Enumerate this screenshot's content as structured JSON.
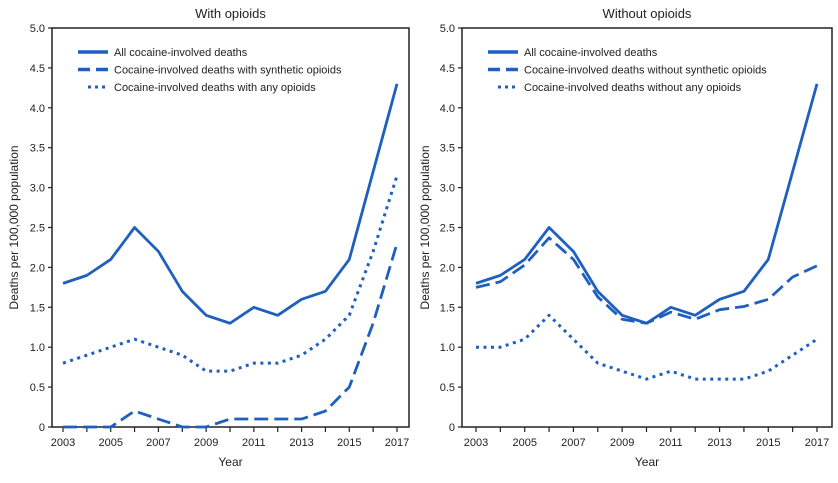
{
  "line_color": "#1f5fbf",
  "chart_data": [
    {
      "type": "line",
      "title": "With opioids",
      "xlabel": "Year",
      "ylabel": "Deaths per 100,000 population",
      "ylim": [
        0,
        5.0
      ],
      "yticks": [
        "0",
        "0.5",
        "1.0",
        "1.5",
        "2.0",
        "2.5",
        "3.0",
        "3.5",
        "4.0",
        "4.5",
        "5.0"
      ],
      "xticks": [
        "2003",
        "2005",
        "2007",
        "2009",
        "2011",
        "2013",
        "2015",
        "2017"
      ],
      "x": [
        2003,
        2004,
        2005,
        2006,
        2007,
        2008,
        2009,
        2010,
        2011,
        2012,
        2013,
        2014,
        2015,
        2016,
        2017
      ],
      "grid": false,
      "legend": "top-left",
      "series": [
        {
          "name": "All cocaine-involved deaths",
          "style": "solid",
          "values": [
            1.8,
            1.9,
            2.1,
            2.5,
            2.2,
            1.7,
            1.4,
            1.3,
            1.5,
            1.4,
            1.6,
            1.7,
            2.1,
            3.2,
            4.3
          ]
        },
        {
          "name": "Cocaine-involved deaths with synthetic opioids",
          "style": "dashed",
          "values": [
            0,
            0,
            0,
            0.2,
            0.1,
            0,
            0,
            0.1,
            0.1,
            0.1,
            0.1,
            0.2,
            0.5,
            1.3,
            2.3
          ]
        },
        {
          "name": "Cocaine-involved deaths with any opioids",
          "style": "dotted",
          "values": [
            0.8,
            0.9,
            1.0,
            1.1,
            1.0,
            0.9,
            0.7,
            0.7,
            0.8,
            0.8,
            0.9,
            1.1,
            1.4,
            2.2,
            3.15
          ]
        }
      ]
    },
    {
      "type": "line",
      "title": "Without opioids",
      "xlabel": "Year",
      "ylabel": "Deaths per 100,000 population",
      "ylim": [
        0,
        5.0
      ],
      "yticks": [
        "0",
        "0.5",
        "1.0",
        "1.5",
        "2.0",
        "2.5",
        "3.0",
        "3.5",
        "4.0",
        "4.5",
        "5.0"
      ],
      "xticks": [
        "2003",
        "2005",
        "2007",
        "2009",
        "2011",
        "2013",
        "2015",
        "2017"
      ],
      "x": [
        2003,
        2004,
        2005,
        2006,
        2007,
        2008,
        2009,
        2010,
        2011,
        2012,
        2013,
        2014,
        2015,
        2016,
        2017
      ],
      "grid": false,
      "legend": "top-left",
      "series": [
        {
          "name": "All cocaine-involved deaths",
          "style": "solid",
          "values": [
            1.8,
            1.9,
            2.1,
            2.5,
            2.2,
            1.7,
            1.4,
            1.3,
            1.5,
            1.4,
            1.6,
            1.7,
            2.1,
            3.2,
            4.3
          ]
        },
        {
          "name": "Cocaine-involved deaths without synthetic opioids",
          "style": "dashed",
          "values": [
            1.75,
            1.82,
            2.03,
            2.37,
            2.1,
            1.63,
            1.35,
            1.3,
            1.44,
            1.35,
            1.47,
            1.51,
            1.6,
            1.88,
            2.02
          ]
        },
        {
          "name": "Cocaine-involved deaths without any opioids",
          "style": "dotted",
          "values": [
            1.0,
            1.0,
            1.1,
            1.4,
            1.1,
            0.8,
            0.7,
            0.6,
            0.7,
            0.6,
            0.6,
            0.6,
            0.7,
            0.9,
            1.1
          ]
        }
      ]
    }
  ]
}
